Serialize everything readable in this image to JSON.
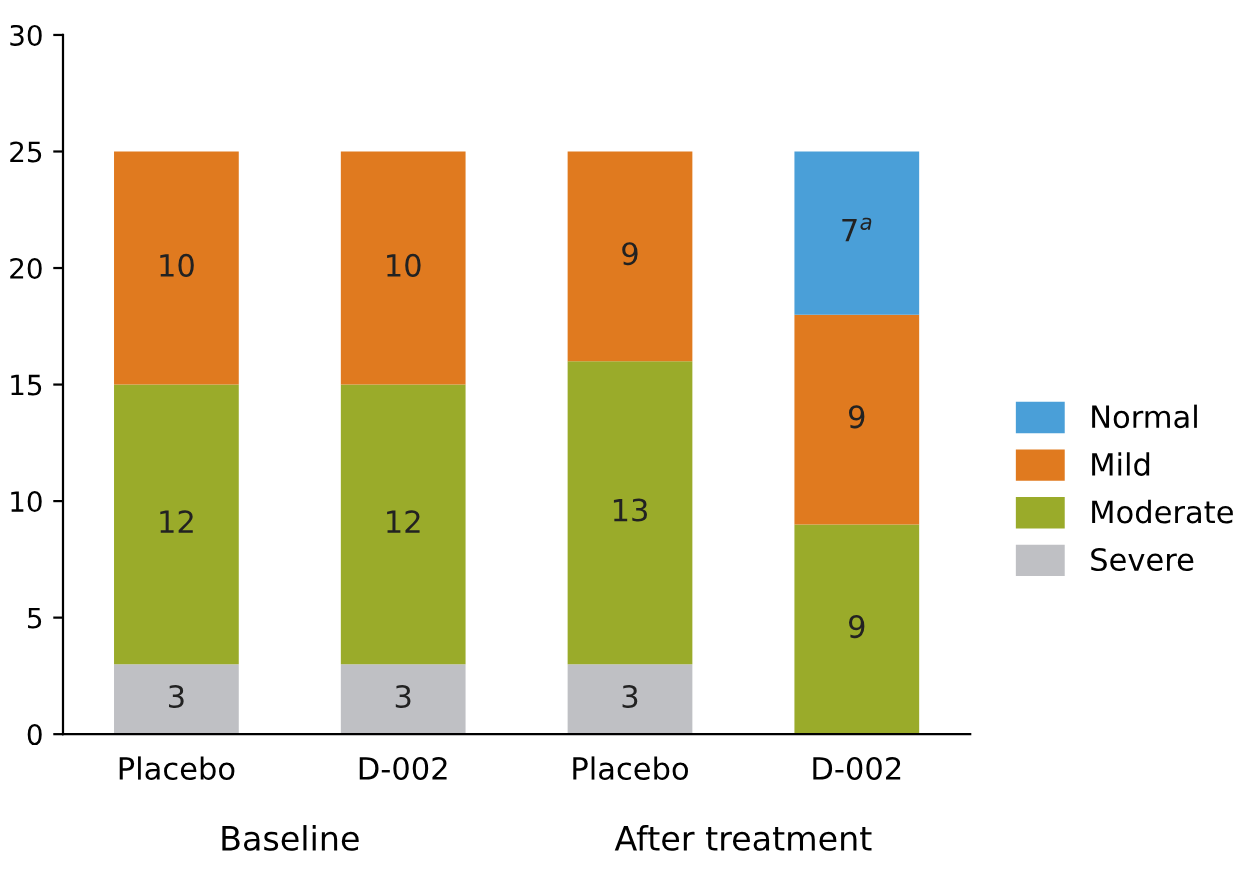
{
  "chart_data": {
    "type": "bar",
    "stacked": true,
    "categories": [
      "Placebo",
      "D-002",
      "Placebo",
      "D-002"
    ],
    "series": [
      {
        "name": "Severe",
        "color": "#bfc0c4",
        "values": [
          3,
          3,
          3,
          null
        ],
        "value_labels": [
          "3",
          "3",
          "3",
          null
        ]
      },
      {
        "name": "Moderate",
        "color": "#9aab2a",
        "values": [
          12,
          12,
          13,
          9
        ],
        "value_labels": [
          "12",
          "12",
          "13",
          "9"
        ]
      },
      {
        "name": "Mild",
        "color": "#e07a1f",
        "values": [
          10,
          10,
          9,
          9
        ],
        "value_labels": [
          "10",
          "10",
          "9",
          "9"
        ]
      },
      {
        "name": "Normal",
        "color": "#4a9fd8",
        "values": [
          null,
          null,
          null,
          7
        ],
        "value_labels": [
          null,
          null,
          null,
          "7$^{a}$"
        ]
      }
    ],
    "annotations": [
      "Baseline",
      "After treatment"
    ],
    "ylim": [
      0,
      30
    ],
    "yticks": [
      0,
      5,
      10,
      15,
      20,
      25,
      30
    ],
    "grid": false,
    "legend": "right"
  }
}
